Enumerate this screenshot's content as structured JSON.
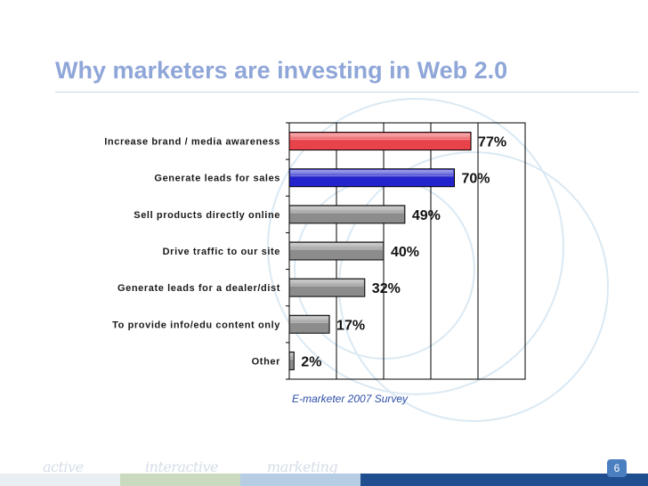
{
  "slide": {
    "title": "Why marketers are investing in Web 2.0",
    "source": "E-marketer 2007 Survey",
    "page_number": "6",
    "footer": {
      "words": [
        "active",
        "interactive",
        "marketing"
      ],
      "colors": [
        "#e9eef3",
        "#c9dabf",
        "#b7cde3",
        "#1f4f8e"
      ]
    }
  },
  "chart_data": {
    "type": "bar",
    "orientation": "horizontal",
    "categories": [
      "Increase brand / media awareness",
      "Generate leads for sales",
      "Sell products directly online",
      "Drive traffic to our site",
      "Generate leads for a dealer/dist",
      "To provide info/edu content only",
      "Other"
    ],
    "values": [
      77,
      70,
      49,
      40,
      32,
      17,
      2
    ],
    "value_labels": [
      "77%",
      "70%",
      "49%",
      "40%",
      "32%",
      "17%",
      "2%"
    ],
    "bar_colors": [
      "#e8424a",
      "#2424cc",
      "#8c8c8c",
      "#8c8c8c",
      "#8c8c8c",
      "#8c8c8c",
      "#8c8c8c"
    ],
    "xlim": [
      0,
      100
    ],
    "grid": true
  }
}
